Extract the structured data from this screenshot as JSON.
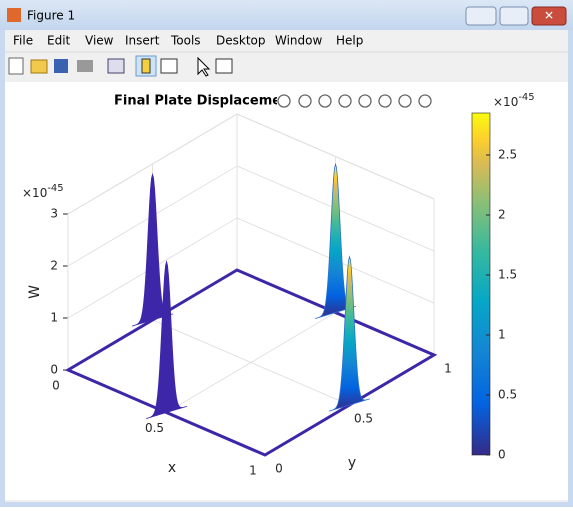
{
  "window": {
    "title": "Figure 1",
    "menu": [
      "File",
      "Edit",
      "View",
      "Insert",
      "Tools",
      "Desktop",
      "Window",
      "Help"
    ]
  },
  "chart_data": {
    "type": "surface3d",
    "title": "Final Plate Displacement",
    "x_label": "x",
    "y_label": "y",
    "z_label": "W",
    "xlim": [
      0,
      1
    ],
    "ylim": [
      0,
      1
    ],
    "zlim": [
      0,
      3e-45
    ],
    "xticks": [
      0,
      0.5,
      1
    ],
    "yticks": [
      0,
      0.5,
      1
    ],
    "zticks": [
      0,
      {
        "value": 1e-45,
        "label": "1"
      },
      {
        "value": 2e-45,
        "label": "2"
      },
      {
        "value": 3e-45,
        "label": "3"
      }
    ],
    "z_exponent": {
      "base": "×10",
      "power": "-45"
    },
    "grid": true,
    "edge_color": "#3e26a8",
    "peaks": [
      {
        "x": 0,
        "y": 0.5,
        "z": 2.8e-45,
        "color": "#3e26a8"
      },
      {
        "x": 0.5,
        "y": 0,
        "z": 2.9e-45,
        "color": "#3e26a8"
      },
      {
        "x": 0.5,
        "y": 1,
        "z": 2.85e-45,
        "color": "parula"
      },
      {
        "x": 1,
        "y": 0.5,
        "z": 2.85e-45,
        "color": "parula"
      }
    ],
    "colorbar": {
      "clim": [
        0,
        2.85e-45
      ],
      "ticks": [
        0,
        {
          "value": 5e-46,
          "label": "0.5"
        },
        {
          "value": 1e-45,
          "label": "1"
        },
        {
          "value": 1.5e-45,
          "label": "1.5"
        },
        {
          "value": 2e-45,
          "label": "2"
        },
        {
          "value": 2.5e-45,
          "label": "2.5"
        }
      ],
      "exponent": {
        "base": "×10",
        "power": "-45"
      }
    }
  }
}
